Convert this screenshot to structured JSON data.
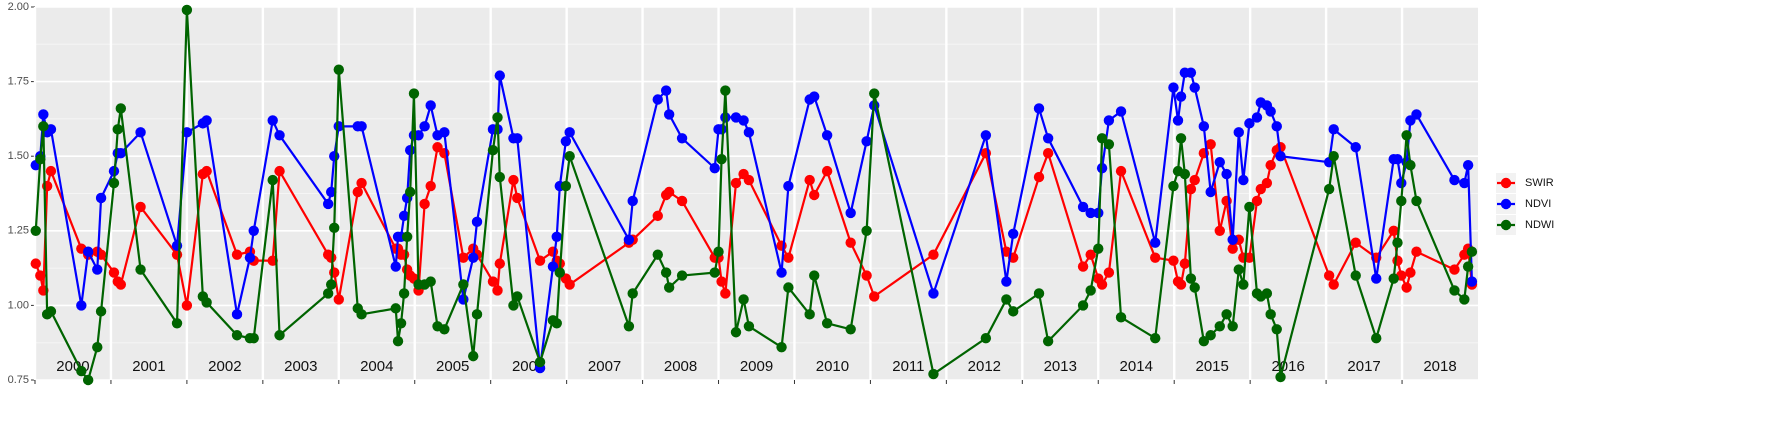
{
  "chart_data": {
    "type": "line",
    "x": [
      2000.01,
      2000.07,
      2000.11,
      2000.16,
      2000.21,
      2000.61,
      2000.7,
      2000.82,
      2000.87,
      2001.04,
      2001.09,
      2001.13,
      2001.39,
      2001.87,
      2002.0,
      2002.21,
      2002.26,
      2002.66,
      2002.83,
      2002.88,
      2003.13,
      2003.22,
      2003.86,
      2003.9,
      2003.94,
      2004.0,
      2004.25,
      2004.3,
      2004.75,
      2004.78,
      2004.82,
      2004.86,
      2004.9,
      2004.94,
      2004.99,
      2005.05,
      2005.13,
      2005.21,
      2005.3,
      2005.39,
      2005.64,
      2005.77,
      2005.82,
      2006.03,
      2006.09,
      2006.12,
      2006.3,
      2006.35,
      2006.65,
      2006.82,
      2006.87,
      2006.91,
      2006.99,
      2007.04,
      2007.82,
      2007.87,
      2008.2,
      2008.31,
      2008.35,
      2008.52,
      2008.95,
      2009.0,
      2009.04,
      2009.09,
      2009.23,
      2009.33,
      2009.4,
      2009.83,
      2009.92,
      2010.2,
      2010.26,
      2010.43,
      2010.74,
      2010.95,
      2011.05,
      2011.83,
      2012.52,
      2012.79,
      2012.88,
      2013.22,
      2013.34,
      2013.8,
      2013.9,
      2014.0,
      2014.05,
      2014.14,
      2014.3,
      2014.75,
      2014.99,
      2015.05,
      2015.09,
      2015.14,
      2015.22,
      2015.27,
      2015.39,
      2015.48,
      2015.6,
      2015.69,
      2015.77,
      2015.85,
      2015.91,
      2015.99,
      2016.09,
      2016.14,
      2016.22,
      2016.27,
      2016.35,
      2016.4,
      2017.04,
      2017.1,
      2017.39,
      2017.66,
      2017.89,
      2017.94,
      2017.99,
      2018.06,
      2018.11,
      2018.19,
      2018.69,
      2018.82,
      2018.87,
      2018.92
    ],
    "series": [
      {
        "name": "SWIR",
        "color": "#ff0000",
        "values": [
          1.14,
          1.1,
          1.05,
          1.4,
          1.45,
          1.19,
          1.17,
          1.18,
          1.17,
          1.11,
          1.08,
          1.07,
          1.33,
          1.17,
          1.0,
          1.44,
          1.45,
          1.17,
          1.18,
          1.15,
          1.15,
          1.45,
          1.17,
          1.16,
          1.11,
          1.02,
          1.38,
          1.41,
          1.19,
          1.19,
          1.17,
          1.17,
          1.12,
          1.1,
          1.09,
          1.05,
          1.34,
          1.4,
          1.53,
          1.51,
          1.16,
          1.19,
          1.17,
          1.08,
          1.05,
          1.14,
          1.42,
          1.36,
          1.15,
          1.18,
          1.15,
          1.14,
          1.09,
          1.07,
          1.21,
          1.22,
          1.3,
          1.37,
          1.38,
          1.35,
          1.16,
          1.16,
          1.08,
          1.04,
          1.41,
          1.44,
          1.42,
          1.2,
          1.16,
          1.42,
          1.37,
          1.45,
          1.21,
          1.1,
          1.03,
          1.17,
          1.51,
          1.18,
          1.16,
          1.43,
          1.51,
          1.13,
          1.17,
          1.09,
          1.07,
          1.11,
          1.45,
          1.16,
          1.15,
          1.08,
          1.07,
          1.14,
          1.39,
          1.42,
          1.51,
          1.54,
          1.25,
          1.35,
          1.19,
          1.22,
          1.16,
          1.16,
          1.35,
          1.39,
          1.41,
          1.47,
          1.52,
          1.53,
          1.1,
          1.07,
          1.21,
          1.16,
          1.25,
          1.15,
          1.1,
          1.06,
          1.11,
          1.18,
          1.12,
          1.17,
          1.19,
          1.07
        ]
      },
      {
        "name": "NDVI",
        "color": "#0000ff",
        "values": [
          1.47,
          1.5,
          1.64,
          1.58,
          1.59,
          1.0,
          1.18,
          1.12,
          1.36,
          1.45,
          1.51,
          1.51,
          1.58,
          1.2,
          1.58,
          1.61,
          1.62,
          0.97,
          1.16,
          1.25,
          1.62,
          1.57,
          1.34,
          1.38,
          1.5,
          1.6,
          1.6,
          1.6,
          1.13,
          1.23,
          1.23,
          1.3,
          1.36,
          1.52,
          1.57,
          1.57,
          1.6,
          1.67,
          1.57,
          1.58,
          1.02,
          1.16,
          1.28,
          1.59,
          1.59,
          1.77,
          1.56,
          1.56,
          0.79,
          1.13,
          1.23,
          1.4,
          1.55,
          1.58,
          1.22,
          1.35,
          1.69,
          1.72,
          1.64,
          1.56,
          1.46,
          1.59,
          1.59,
          1.63,
          1.63,
          1.62,
          1.58,
          1.11,
          1.4,
          1.69,
          1.7,
          1.57,
          1.31,
          1.55,
          1.67,
          1.04,
          1.57,
          1.08,
          1.24,
          1.66,
          1.56,
          1.33,
          1.31,
          1.31,
          1.46,
          1.62,
          1.65,
          1.21,
          1.73,
          1.62,
          1.7,
          1.78,
          1.78,
          1.73,
          1.6,
          1.38,
          1.48,
          1.44,
          1.22,
          1.58,
          1.42,
          1.61,
          1.63,
          1.68,
          1.67,
          1.65,
          1.6,
          1.5,
          1.48,
          1.59,
          1.53,
          1.09,
          1.49,
          1.49,
          1.41,
          1.48,
          1.62,
          1.64,
          1.42,
          1.41,
          1.47,
          1.08
        ]
      },
      {
        "name": "NDWI",
        "color": "#006400",
        "values": [
          1.25,
          1.49,
          1.6,
          0.97,
          0.98,
          0.78,
          0.75,
          0.86,
          0.98,
          1.41,
          1.59,
          1.66,
          1.12,
          0.94,
          1.99,
          1.03,
          1.01,
          0.9,
          0.89,
          0.89,
          1.42,
          0.9,
          1.04,
          1.07,
          1.26,
          1.79,
          0.99,
          0.97,
          0.99,
          0.88,
          0.94,
          1.04,
          1.23,
          1.38,
          1.71,
          1.07,
          1.07,
          1.08,
          0.93,
          0.92,
          1.07,
          0.83,
          0.97,
          1.52,
          1.63,
          1.43,
          1.0,
          1.03,
          0.81,
          0.95,
          0.94,
          1.11,
          1.4,
          1.5,
          0.93,
          1.04,
          1.17,
          1.11,
          1.06,
          1.1,
          1.11,
          1.18,
          1.49,
          1.72,
          0.91,
          1.02,
          0.93,
          0.86,
          1.06,
          0.97,
          1.1,
          0.94,
          0.92,
          1.25,
          1.71,
          0.77,
          0.89,
          1.02,
          0.98,
          1.04,
          0.88,
          1.0,
          1.05,
          1.19,
          1.56,
          1.54,
          0.96,
          0.89,
          1.4,
          1.45,
          1.56,
          1.44,
          1.09,
          1.06,
          0.88,
          0.9,
          0.93,
          0.97,
          0.93,
          1.12,
          1.07,
          1.33,
          1.04,
          1.03,
          1.04,
          0.97,
          0.92,
          0.76,
          1.39,
          1.5,
          1.1,
          0.89,
          1.09,
          1.21,
          1.35,
          1.57,
          1.47,
          1.35,
          1.05,
          1.02,
          1.13,
          1.18
        ]
      }
    ],
    "xlim": [
      2000,
      2019
    ],
    "xticks": [
      2000,
      2001,
      2002,
      2003,
      2004,
      2005,
      2006,
      2007,
      2008,
      2009,
      2010,
      2011,
      2012,
      2013,
      2014,
      2015,
      2016,
      2017,
      2018
    ],
    "ylim": [
      0.75,
      2.0
    ],
    "yticks": [
      {
        "value": 0.75,
        "label": "0.75"
      },
      {
        "value": 1.0,
        "label": "1.00"
      },
      {
        "value": 1.25,
        "label": "1.25"
      },
      {
        "value": 1.5,
        "label": "1.50"
      },
      {
        "value": 1.75,
        "label": "1.75"
      },
      {
        "value": 2.0,
        "label": "2.00"
      }
    ],
    "grid": true,
    "legend": "right"
  }
}
